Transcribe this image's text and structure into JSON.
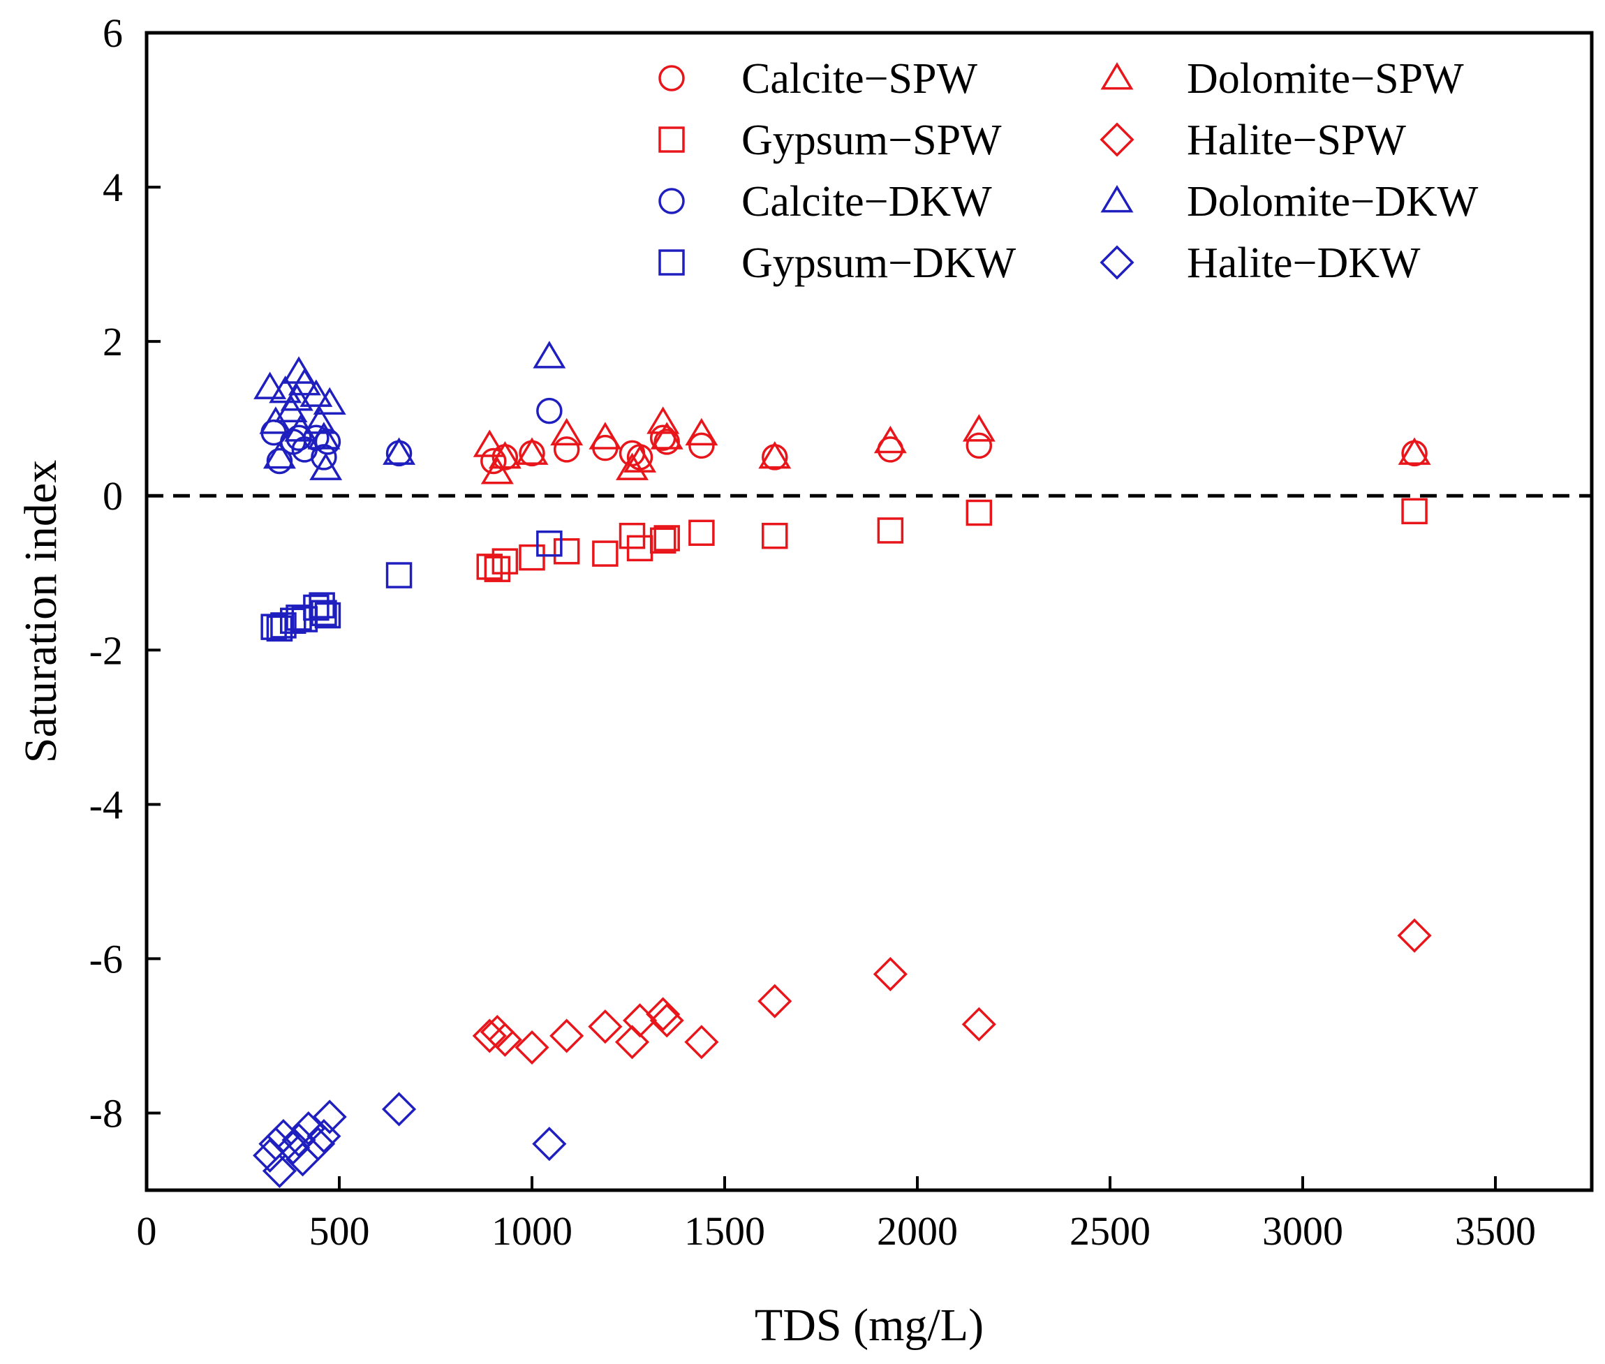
{
  "chart_data": {
    "type": "scatter",
    "title": "",
    "xlabel": "TDS (mg/L)",
    "ylabel": "Saturation index",
    "xlim": [
      0,
      3750
    ],
    "ylim": [
      -9,
      6
    ],
    "xticks": [
      0,
      500,
      1000,
      1500,
      2000,
      2500,
      3000,
      3500
    ],
    "xtick_labels": [
      "0",
      "500",
      "1000",
      "1500",
      "2000",
      "2500",
      "3000",
      "3500"
    ],
    "yticks": [
      -8,
      -6,
      -4,
      -2,
      0,
      2,
      4,
      6
    ],
    "ytick_labels": [
      "-8",
      "-6",
      "-4",
      "-2",
      "0",
      "2",
      "4",
      "6"
    ],
    "reference_line": {
      "y": 0,
      "style": "dashed",
      "color": "#000000"
    },
    "legend_position": "top-right",
    "colors": {
      "SPW": "#e8161b",
      "DKW": "#1f1fbf"
    },
    "series": [
      {
        "name": "Calcite−SPW",
        "marker": "circle",
        "color": "#e8161b",
        "points": [
          [
            900,
            0.45
          ],
          [
            930,
            0.5
          ],
          [
            1000,
            0.55
          ],
          [
            1090,
            0.6
          ],
          [
            1190,
            0.62
          ],
          [
            1260,
            0.55
          ],
          [
            1280,
            0.5
          ],
          [
            1340,
            0.75
          ],
          [
            1350,
            0.7
          ],
          [
            1440,
            0.65
          ],
          [
            1630,
            0.5
          ],
          [
            1930,
            0.6
          ],
          [
            2160,
            0.65
          ],
          [
            3290,
            0.55
          ]
        ]
      },
      {
        "name": "Dolomite−SPW",
        "marker": "triangle",
        "color": "#e8161b",
        "points": [
          [
            890,
            0.65
          ],
          [
            910,
            0.3
          ],
          [
            930,
            0.5
          ],
          [
            1000,
            0.55
          ],
          [
            1090,
            0.8
          ],
          [
            1190,
            0.75
          ],
          [
            1260,
            0.35
          ],
          [
            1280,
            0.45
          ],
          [
            1340,
            0.95
          ],
          [
            1350,
            0.75
          ],
          [
            1440,
            0.8
          ],
          [
            1630,
            0.5
          ],
          [
            1930,
            0.7
          ],
          [
            2160,
            0.85
          ],
          [
            3290,
            0.55
          ]
        ]
      },
      {
        "name": "Gypsum−SPW",
        "marker": "square",
        "color": "#e8161b",
        "points": [
          [
            890,
            -0.92
          ],
          [
            910,
            -0.95
          ],
          [
            930,
            -0.85
          ],
          [
            1000,
            -0.8
          ],
          [
            1090,
            -0.72
          ],
          [
            1190,
            -0.75
          ],
          [
            1260,
            -0.52
          ],
          [
            1280,
            -0.68
          ],
          [
            1340,
            -0.58
          ],
          [
            1350,
            -0.55
          ],
          [
            1440,
            -0.48
          ],
          [
            1630,
            -0.52
          ],
          [
            1930,
            -0.45
          ],
          [
            2160,
            -0.22
          ],
          [
            3290,
            -0.2
          ]
        ]
      },
      {
        "name": "Halite−SPW",
        "marker": "diamond",
        "color": "#e8161b",
        "points": [
          [
            890,
            -7.0
          ],
          [
            910,
            -6.95
          ],
          [
            930,
            -7.05
          ],
          [
            1000,
            -7.15
          ],
          [
            1090,
            -7.0
          ],
          [
            1190,
            -6.88
          ],
          [
            1260,
            -7.08
          ],
          [
            1280,
            -6.8
          ],
          [
            1340,
            -6.72
          ],
          [
            1350,
            -6.8
          ],
          [
            1440,
            -7.08
          ],
          [
            1630,
            -6.55
          ],
          [
            1930,
            -6.2
          ],
          [
            2160,
            -6.85
          ],
          [
            3290,
            -5.7
          ]
        ]
      },
      {
        "name": "Calcite−DKW",
        "marker": "circle",
        "color": "#1f1fbf",
        "points": [
          [
            330,
            0.82
          ],
          [
            345,
            0.45
          ],
          [
            380,
            0.7
          ],
          [
            395,
            0.75
          ],
          [
            410,
            0.6
          ],
          [
            440,
            0.75
          ],
          [
            460,
            0.5
          ],
          [
            470,
            0.7
          ],
          [
            655,
            0.55
          ],
          [
            1045,
            1.1
          ]
        ]
      },
      {
        "name": "Dolomite−DKW",
        "marker": "triangle",
        "color": "#1f1fbf",
        "points": [
          [
            320,
            1.4
          ],
          [
            335,
            0.95
          ],
          [
            345,
            0.5
          ],
          [
            360,
            1.35
          ],
          [
            375,
            1.1
          ],
          [
            390,
            1.25
          ],
          [
            395,
            1.6
          ],
          [
            400,
            0.85
          ],
          [
            410,
            1.45
          ],
          [
            440,
            1.3
          ],
          [
            450,
            0.95
          ],
          [
            460,
            0.75
          ],
          [
            465,
            0.35
          ],
          [
            475,
            1.2
          ],
          [
            655,
            0.55
          ],
          [
            1045,
            1.8
          ]
        ]
      },
      {
        "name": "Gypsum−DKW",
        "marker": "square",
        "color": "#1f1fbf",
        "points": [
          [
            330,
            -1.7
          ],
          [
            345,
            -1.72
          ],
          [
            355,
            -1.68
          ],
          [
            380,
            -1.62
          ],
          [
            395,
            -1.58
          ],
          [
            410,
            -1.6
          ],
          [
            440,
            -1.45
          ],
          [
            455,
            -1.42
          ],
          [
            460,
            -1.52
          ],
          [
            470,
            -1.55
          ],
          [
            655,
            -1.03
          ],
          [
            1045,
            -0.62
          ]
        ]
      },
      {
        "name": "Halite−DKW",
        "marker": "diamond",
        "color": "#1f1fbf",
        "points": [
          [
            320,
            -8.55
          ],
          [
            335,
            -8.4
          ],
          [
            345,
            -8.75
          ],
          [
            355,
            -8.3
          ],
          [
            380,
            -8.45
          ],
          [
            395,
            -8.35
          ],
          [
            405,
            -8.6
          ],
          [
            420,
            -8.2
          ],
          [
            445,
            -8.4
          ],
          [
            460,
            -8.3
          ],
          [
            475,
            -8.05
          ],
          [
            655,
            -7.95
          ],
          [
            1045,
            -8.4
          ]
        ]
      }
    ]
  }
}
